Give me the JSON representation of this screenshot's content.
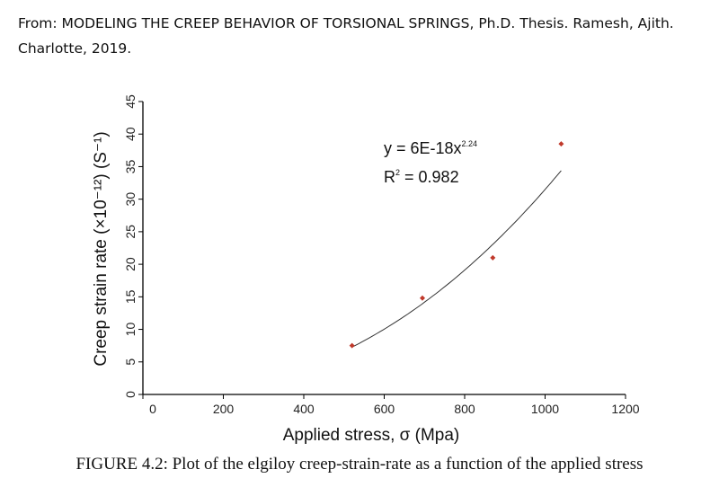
{
  "header": {
    "line1": "From: MODELING THE CREEP BEHAVIOR OF TORSIONAL SPRINGS, Ph.D. Thesis. Ramesh, Ajith.",
    "line2": "Charlotte, 2019."
  },
  "caption": "FIGURE 4.2: Plot of the elgiloy creep-strain-rate as a function of the applied stress",
  "chart_data": {
    "type": "scatter",
    "xlabel": "Applied stress, σ (Mpa)",
    "ylabel": "Creep strain rate (×10⁻¹²) (S⁻¹)",
    "xlim": [
      0,
      1200
    ],
    "ylim": [
      0,
      45
    ],
    "x_ticks": [
      0,
      200,
      400,
      600,
      800,
      1000,
      1200
    ],
    "y_ticks": [
      0,
      5,
      10,
      15,
      20,
      25,
      30,
      35,
      40,
      45
    ],
    "grid": false,
    "legend": "none",
    "series": [
      {
        "x": [
          520,
          695,
          870,
          1040
        ],
        "y": [
          7.5,
          14.8,
          21,
          38.5
        ],
        "color": "#c0392b"
      }
    ],
    "trendline": {
      "type": "power",
      "coefficient": 6e-18,
      "exponent": 2.24,
      "x_range": [
        520,
        1040
      ],
      "color": "#333333"
    },
    "annotations": {
      "equation_base": "y = 6E-18x",
      "equation_exponent": "2.24",
      "r2_prefix": "R",
      "r2_sup": "2",
      "r2_value": " = 0.982"
    }
  }
}
